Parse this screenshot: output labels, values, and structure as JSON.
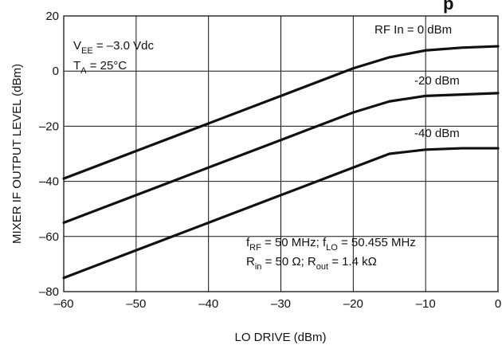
{
  "chart_data": {
    "type": "line",
    "title_fragment": "p",
    "xlabel": "LO DRIVE (dBm)",
    "ylabel": "MIXER IF OUTPUT LEVEL (dBm)",
    "xlim": [
      -60,
      0
    ],
    "ylim": [
      -80,
      20
    ],
    "x_ticks": [
      "-60",
      "-50",
      "-40",
      "-30",
      "-20",
      "-10",
      "0"
    ],
    "y_ticks": [
      "20",
      "0",
      "-20",
      "-40",
      "-60",
      "-80"
    ],
    "grid": true,
    "series": [
      {
        "name": "RF In = 0 dBm",
        "x": [
          -60,
          -50,
          -40,
          -30,
          -20,
          -15,
          -10,
          -5,
          0
        ],
        "y": [
          -39,
          -29,
          -19,
          -9,
          1,
          5,
          7.5,
          8.5,
          9
        ]
      },
      {
        "name": "-20 dBm",
        "x": [
          -60,
          -50,
          -40,
          -30,
          -20,
          -15,
          -10,
          -5,
          0
        ],
        "y": [
          -55,
          -45,
          -35,
          -25,
          -15,
          -11,
          -9,
          -8.5,
          -8
        ]
      },
      {
        "name": "-40 dBm",
        "x": [
          -60,
          -50,
          -40,
          -30,
          -20,
          -15,
          -10,
          -5,
          0
        ],
        "y": [
          -75,
          -65,
          -55,
          -45,
          -35,
          -30,
          -28.5,
          -28,
          -28
        ]
      }
    ],
    "annotations": {
      "vee": {
        "main": "V",
        "sub": "EE",
        "rest": " = –3.0 Vdc"
      },
      "ta": {
        "main": "T",
        "sub": "A",
        "rest": " = 25°C"
      },
      "freq": {
        "f1": "f",
        "f1sub": "RF",
        "f1rest": " = 50 MHz; f",
        "f2sub": "LO",
        "f2rest": " = 50.455 MHz"
      },
      "res": {
        "r1": "R",
        "r1sub": "in",
        "r1rest": " = 50 Ω; R",
        "r2sub": "out",
        "r2rest": " = 1.4 kΩ"
      }
    }
  }
}
